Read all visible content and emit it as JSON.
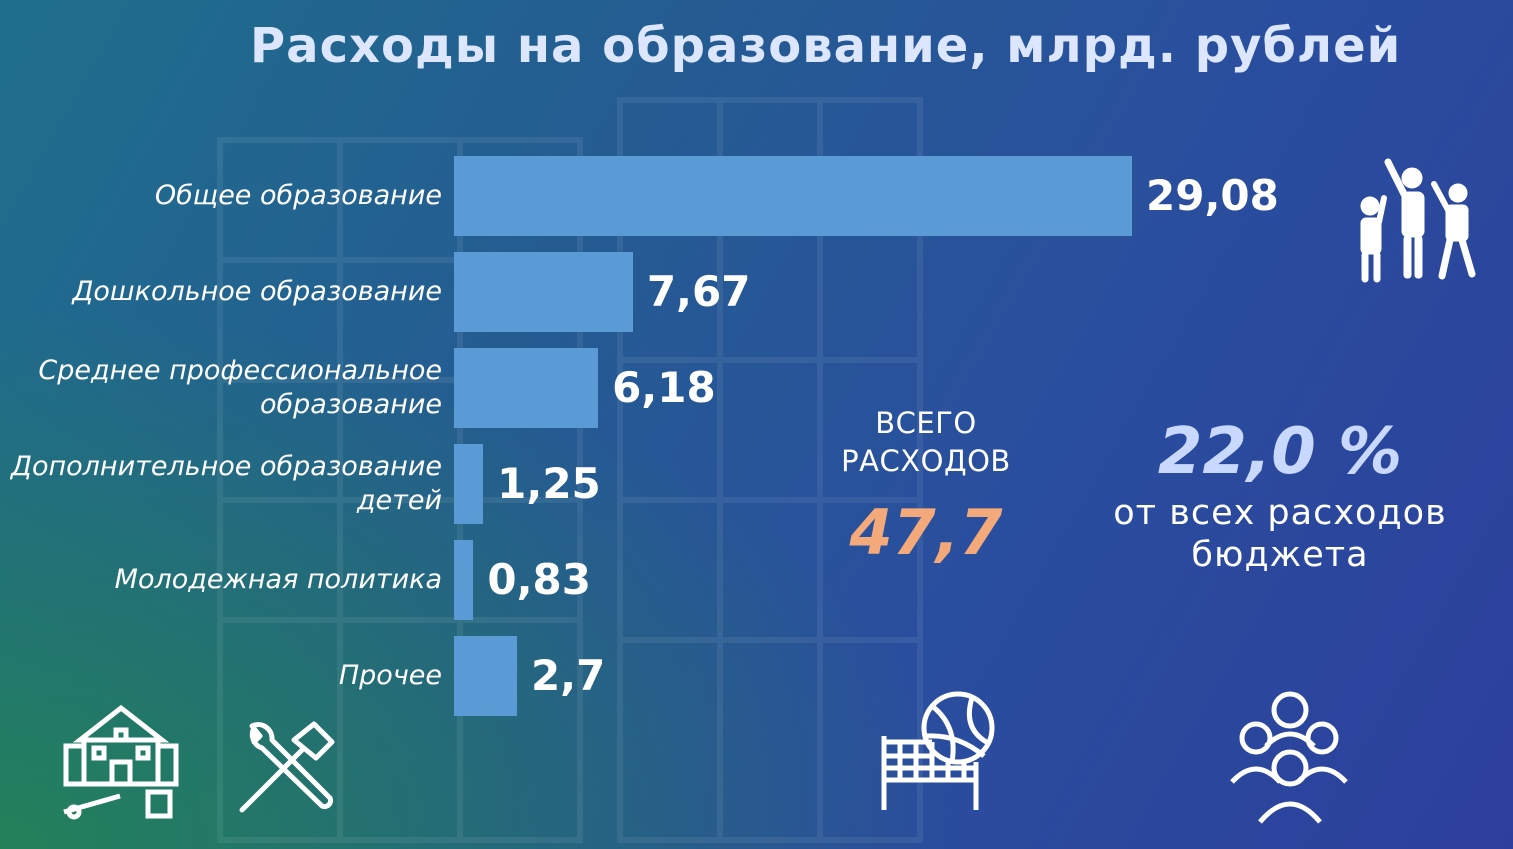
{
  "title": "Расходы на образование, млрд. рублей",
  "chart_data": {
    "type": "bar",
    "orientation": "horizontal",
    "categories": [
      "Общее образование",
      "Дошкольное образование",
      "Среднее профессиональное образование",
      "Дополнительное образование детей",
      "Молодежная политика",
      "Прочее"
    ],
    "values": [
      29.08,
      7.67,
      6.18,
      1.25,
      0.83,
      2.7
    ],
    "value_labels": [
      "29,08",
      "7,67",
      "6,18",
      "1,25",
      "0,83",
      "2,7"
    ],
    "bar_color": "#5b9bd5",
    "xlim": [
      0,
      29.08
    ],
    "grid": false,
    "legend": "none"
  },
  "total": {
    "caption_line1": "ВСЕГО",
    "caption_line2": "РАСХОДОВ",
    "value": "47,7"
  },
  "share": {
    "value": "22,0 %",
    "caption_line1": "от всех расходов",
    "caption_line2": "бюджета"
  },
  "icons": [
    "students-icon",
    "school-building-icon",
    "tools-icon",
    "volleyball-icon",
    "community-icon"
  ],
  "colors": {
    "title": "#dce6ff",
    "total_value": "#f4a97a",
    "share_value": "#c9d8ff",
    "bar": "#5b9bd5"
  }
}
